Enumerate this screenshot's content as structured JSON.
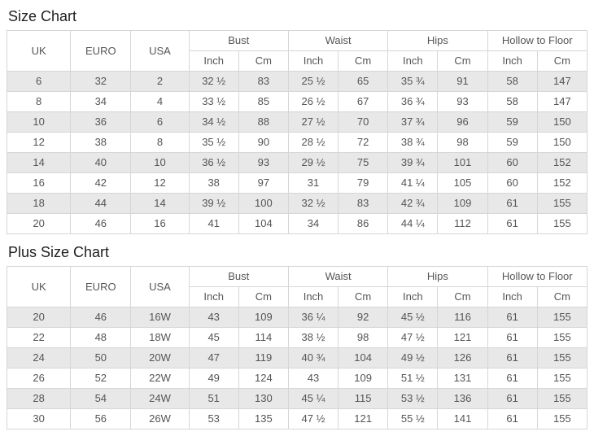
{
  "titles": {
    "size_chart": "Size Chart",
    "plus_size_chart": "Plus Size Chart"
  },
  "headers": {
    "uk": "UK",
    "euro": "EURO",
    "usa": "USA",
    "bust": "Bust",
    "waist": "Waist",
    "hips": "Hips",
    "hollow_to_floor": "Hollow to Floor",
    "inch": "Inch",
    "cm": "Cm"
  },
  "size_chart": {
    "columns": [
      "UK",
      "EURO",
      "USA",
      "Bust Inch",
      "Bust Cm",
      "Waist Inch",
      "Waist Cm",
      "Hips Inch",
      "Hips Cm",
      "Hollow to Floor Inch",
      "Hollow to Floor Cm"
    ],
    "rows": [
      [
        "6",
        "32",
        "2",
        "32 ½",
        "83",
        "25 ½",
        "65",
        "35 ¾",
        "91",
        "58",
        "147"
      ],
      [
        "8",
        "34",
        "4",
        "33 ½",
        "85",
        "26 ½",
        "67",
        "36 ¾",
        "93",
        "58",
        "147"
      ],
      [
        "10",
        "36",
        "6",
        "34 ½",
        "88",
        "27 ½",
        "70",
        "37 ¾",
        "96",
        "59",
        "150"
      ],
      [
        "12",
        "38",
        "8",
        "35 ½",
        "90",
        "28 ½",
        "72",
        "38 ¾",
        "98",
        "59",
        "150"
      ],
      [
        "14",
        "40",
        "10",
        "36 ½",
        "93",
        "29 ½",
        "75",
        "39 ¾",
        "101",
        "60",
        "152"
      ],
      [
        "16",
        "42",
        "12",
        "38",
        "97",
        "31",
        "79",
        "41 ¼",
        "105",
        "60",
        "152"
      ],
      [
        "18",
        "44",
        "14",
        "39 ½",
        "100",
        "32 ½",
        "83",
        "42 ¾",
        "109",
        "61",
        "155"
      ],
      [
        "20",
        "46",
        "16",
        "41",
        "104",
        "34",
        "86",
        "44 ¼",
        "112",
        "61",
        "155"
      ]
    ]
  },
  "plus_size_chart": {
    "columns": [
      "UK",
      "EURO",
      "USA",
      "Bust Inch",
      "Bust Cm",
      "Waist Inch",
      "Waist Cm",
      "Hips Inch",
      "Hips Cm",
      "Hollow to Floor Inch",
      "Hollow to Floor Cm"
    ],
    "rows": [
      [
        "20",
        "46",
        "16W",
        "43",
        "109",
        "36 ¼",
        "92",
        "45 ½",
        "116",
        "61",
        "155"
      ],
      [
        "22",
        "48",
        "18W",
        "45",
        "114",
        "38 ½",
        "98",
        "47 ½",
        "121",
        "61",
        "155"
      ],
      [
        "24",
        "50",
        "20W",
        "47",
        "119",
        "40 ¾",
        "104",
        "49 ½",
        "126",
        "61",
        "155"
      ],
      [
        "26",
        "52",
        "22W",
        "49",
        "124",
        "43",
        "109",
        "51 ½",
        "131",
        "61",
        "155"
      ],
      [
        "28",
        "54",
        "24W",
        "51",
        "130",
        "45 ¼",
        "115",
        "53 ½",
        "136",
        "61",
        "155"
      ],
      [
        "30",
        "56",
        "26W",
        "53",
        "135",
        "47 ½",
        "121",
        "55 ½",
        "141",
        "61",
        "155"
      ]
    ]
  },
  "colors": {
    "stripe_row_bg": "#e8e8e8",
    "border": "#d6d6d6",
    "text": "#555555",
    "title_text": "#1f1f1f"
  }
}
